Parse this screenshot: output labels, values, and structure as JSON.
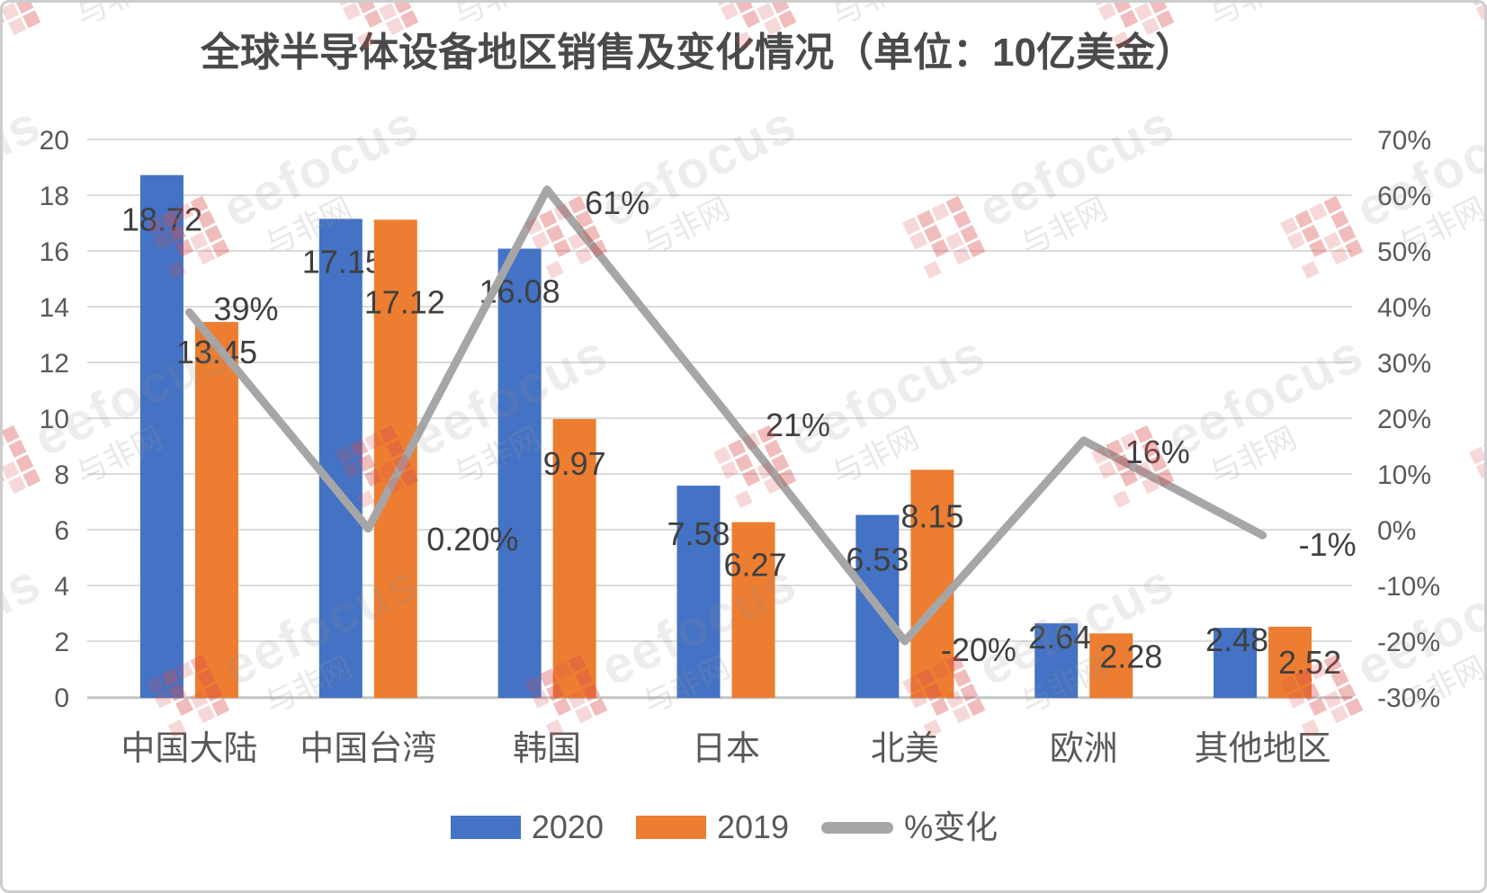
{
  "chart_data": {
    "type": "combo-bar-line",
    "title": "全球半导体设备地区销售及变化情况（单位：10亿美金）",
    "categories": [
      "中国大陆",
      "中国台湾",
      "韩国",
      "日本",
      "北美",
      "欧洲",
      "其他地区"
    ],
    "series": [
      {
        "name": "2020",
        "type": "bar",
        "axis": "primary",
        "color": "#4472C4",
        "values": [
          18.72,
          17.15,
          16.08,
          7.58,
          6.53,
          2.64,
          2.48
        ],
        "labels": [
          "18.72",
          "17.15",
          "16.08",
          "7.58",
          "6.53",
          "2.64",
          "2.48"
        ],
        "label_offsets": [
          [
            0,
            36
          ],
          [
            2,
            34
          ],
          [
            0,
            34
          ],
          [
            0,
            40
          ],
          [
            0,
            36
          ],
          [
            4,
            2
          ],
          [
            2,
            0
          ]
        ]
      },
      {
        "name": "2019",
        "type": "bar",
        "axis": "primary",
        "color": "#ED7D31",
        "values": [
          13.45,
          17.12,
          9.97,
          6.27,
          8.15,
          2.28,
          2.52
        ],
        "labels": [
          "13.45",
          "17.12",
          "9.97",
          "6.27",
          "8.15",
          "2.28",
          "2.52"
        ],
        "label_offsets": [
          [
            0,
            20
          ],
          [
            10,
            78
          ],
          [
            0,
            36
          ],
          [
            2,
            34
          ],
          [
            0,
            38
          ],
          [
            22,
            12
          ],
          [
            22,
            26
          ]
        ]
      },
      {
        "name": "%变化",
        "type": "line",
        "axis": "secondary",
        "color": "#A6A6A6",
        "values": [
          39,
          0.2,
          61,
          21,
          -20,
          16,
          -1
        ],
        "labels": [
          "39%",
          "0.20%",
          "61%",
          "21%",
          "-20%",
          "16%",
          "-1%"
        ],
        "label_offsets": [
          [
            27,
            -5
          ],
          [
            65,
            10
          ],
          [
            42,
            13
          ],
          [
            44,
            12
          ],
          [
            40,
            8
          ],
          [
            46,
            11
          ],
          [
            40,
            9
          ]
        ]
      }
    ],
    "left_axis": {
      "min": 0,
      "max": 20,
      "tick_values": [
        0,
        2,
        4,
        6,
        8,
        10,
        12,
        14,
        16,
        18,
        20
      ],
      "tick_labels": [
        "0",
        "2",
        "4",
        "6",
        "8",
        "10",
        "12",
        "14",
        "16",
        "18",
        "20"
      ]
    },
    "right_axis": {
      "min": -30,
      "max": 70,
      "tick_values": [
        -30,
        -20,
        -10,
        0,
        10,
        20,
        30,
        40,
        50,
        60,
        70
      ],
      "tick_labels": [
        "-30%",
        "-20%",
        "-10%",
        "0%",
        "10%",
        "20%",
        "30%",
        "40%",
        "50%",
        "60%",
        "70%"
      ]
    },
    "grid": "horizontal",
    "legend_position": "bottom",
    "colors": {
      "grid": "#DBDBDB",
      "axis_line": "#C3C3C3",
      "axis_text": "#595959",
      "label_text": "#3F3F3F",
      "category_text": "#595959",
      "title_text": "#4A4A4A"
    }
  },
  "watermark": {
    "brand": "eefocus",
    "site": "与非网"
  }
}
